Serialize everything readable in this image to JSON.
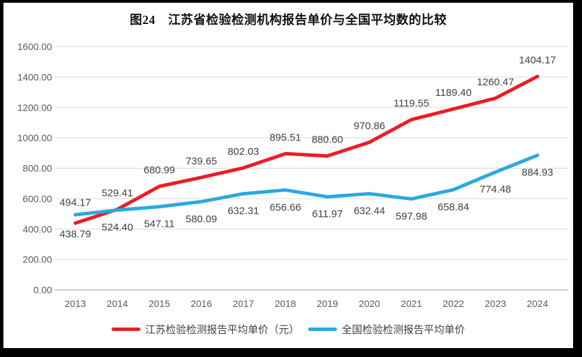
{
  "window": {
    "frame_color": "#000000",
    "page_background": "#ffffff"
  },
  "chart_data": {
    "type": "line",
    "title": "图24　江苏省检验检测机构报告单价与全国平均数的比较",
    "categories": [
      "2013",
      "2014",
      "2015",
      "2016",
      "2017",
      "2018",
      "2019",
      "2020",
      "2021",
      "2022",
      "2023",
      "2024"
    ],
    "series": [
      {
        "name": "江苏检验检测报告平均单价（元）",
        "color": "#ed1c24",
        "label_position": "above",
        "values": [
          438.79,
          529.41,
          680.99,
          739.65,
          802.03,
          895.51,
          880.6,
          970.86,
          1119.55,
          1189.4,
          1260.47,
          1404.17
        ]
      },
      {
        "name": "全国检验检测报告平均单价",
        "color": "#29a9e0",
        "label_position": "below",
        "values": [
          494.17,
          524.4,
          547.11,
          580.09,
          632.31,
          656.66,
          611.97,
          632.44,
          597.98,
          658.84,
          774.48,
          884.93
        ]
      }
    ],
    "ylim": [
      0,
      1600
    ],
    "ytick_step": 200,
    "ytick_decimals": 2,
    "value_labels_shown": true,
    "grid": "horizontal",
    "legend_position": "bottom",
    "colors": {
      "gridline": "#d9d9d9",
      "axis_line": "#bfbfbf",
      "tick_text": "#595959",
      "data_label_text": "#404040"
    }
  }
}
